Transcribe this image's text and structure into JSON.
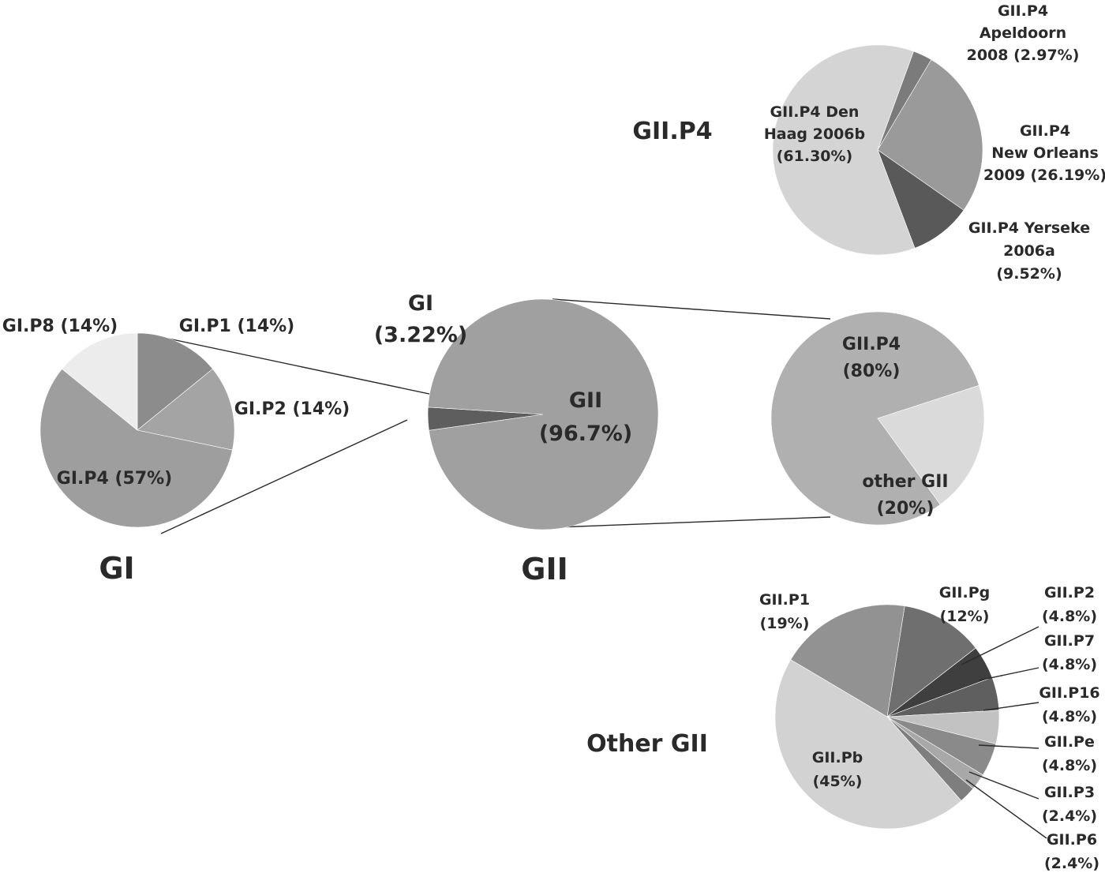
{
  "chart_data": [
    {
      "id": "gii-p4",
      "type": "pie",
      "title": "GII.P4",
      "slices": [
        {
          "label": [
            "GII.P4",
            "Apeldoorn",
            "2008 (2.97%)"
          ],
          "value": 2.97,
          "color": "#7b7b7b"
        },
        {
          "label": [
            "GII.P4",
            "New Orleans",
            "2009 (26.19%)"
          ],
          "value": 26.19,
          "color": "#9a9a9a"
        },
        {
          "label": [
            "GII.P4  Yerseke",
            "2006a",
            "(9.52%)"
          ],
          "value": 9.52,
          "color": "#595959"
        },
        {
          "label": [
            "GII.P4  Den",
            "Haag 2006b",
            "(61.30%)"
          ],
          "value": 61.3,
          "color": "#d4d4d4"
        }
      ]
    },
    {
      "id": "gi",
      "type": "pie",
      "title": "GI",
      "slices": [
        {
          "label": [
            "GI.P1 (14%)"
          ],
          "value": 14,
          "color": "#8c8c8c"
        },
        {
          "label": [
            "GI.P2 (14%)"
          ],
          "value": 14,
          "color": "#a4a4a4"
        },
        {
          "label": [
            "GI.P4 (57%)"
          ],
          "value": 57,
          "color": "#9e9e9e"
        },
        {
          "label": [
            "GI.P8 (14%)"
          ],
          "value": 14,
          "color": "#ececec"
        }
      ]
    },
    {
      "id": "all",
      "type": "pie",
      "title": "GII",
      "slices": [
        {
          "label": [
            "GI",
            "(3.22%)"
          ],
          "value": 3.22,
          "color": "#5e5e5e"
        },
        {
          "label": [
            "GII",
            "(96.7%)"
          ],
          "value": 96.7,
          "color": "#a0a0a0"
        }
      ]
    },
    {
      "id": "gii",
      "type": "pie",
      "title": "",
      "slices": [
        {
          "label": [
            "GII.P4",
            "(80%)"
          ],
          "value": 80,
          "color": "#b0b0b0"
        },
        {
          "label": [
            "other GII",
            "(20%)"
          ],
          "value": 20,
          "color": "#dadada"
        }
      ]
    },
    {
      "id": "other-gii",
      "type": "pie",
      "title": "Other GII",
      "slices": [
        {
          "label": [
            "GII.Pg",
            "(12%)"
          ],
          "value": 12,
          "color": "#6f6f6f"
        },
        {
          "label": [
            "GII.P2",
            "(4.8%)"
          ],
          "value": 4.8,
          "color": "#3f3f3f"
        },
        {
          "label": [
            "GII.P7",
            "(4.8%)"
          ],
          "value": 4.8,
          "color": "#5f5f5f"
        },
        {
          "label": [
            "GII.P16",
            "(4.8%)"
          ],
          "value": 4.8,
          "color": "#c2c2c2"
        },
        {
          "label": [
            "GII.Pe",
            "(4.8%)"
          ],
          "value": 4.8,
          "color": "#8a8a8a"
        },
        {
          "label": [
            "GII.P3",
            "(2.4%)"
          ],
          "value": 2.4,
          "color": "#a8a8a8"
        },
        {
          "label": [
            "GII.P6",
            "(2.4%)"
          ],
          "value": 2.4,
          "color": "#7e7e7e"
        },
        {
          "label": [
            "GII.Pb",
            "(45%)"
          ],
          "value": 45,
          "color": "#d2d2d2"
        },
        {
          "label": [
            "GII.P1",
            "(19%)"
          ],
          "value": 19,
          "color": "#929292"
        }
      ]
    }
  ]
}
